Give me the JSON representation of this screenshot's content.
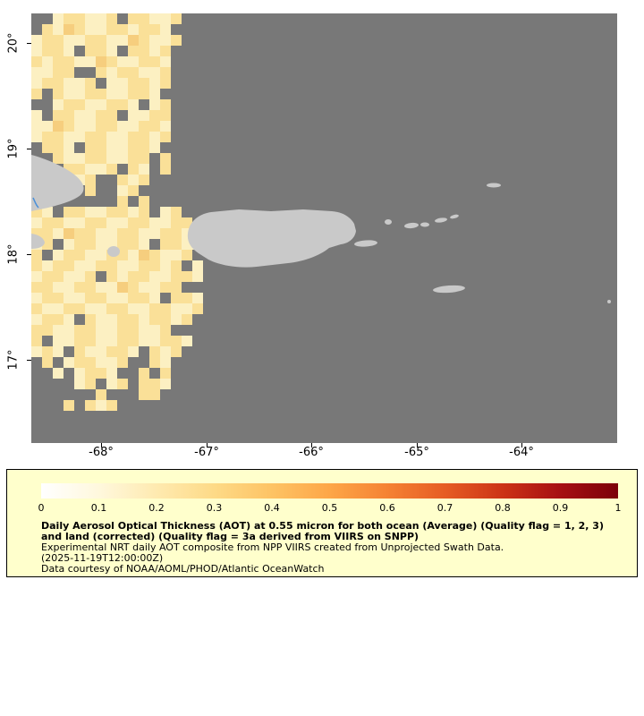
{
  "page": {
    "background": "#ffffff"
  },
  "map": {
    "background_color": "#787878",
    "land_color": "#c9c9c9",
    "river_color": "#4a90d9",
    "x_axis": {
      "labels": [
        "-68°",
        "-67°",
        "-66°",
        "-65°",
        "-64°"
      ],
      "positions": [
        113,
        231,
        348,
        466,
        583
      ]
    },
    "y_axis": {
      "labels": [
        "20°",
        "19°",
        "18°",
        "17°"
      ],
      "positions": [
        48,
        166,
        284,
        402
      ]
    },
    "aot_grid": {
      "cell_size": 12,
      "palette": {
        "a": "#fcf0c2",
        "b": "#fae098",
        "c": "#f6ce7e"
      },
      "rows": [
        "..abbaab.bbaab..",
        ".bacbaabbabba...",
        "abbaabbaacbaab..",
        "abba.bba.bbab...",
        "babbaacbaabba...",
        "aabb..babbaab...",
        "abbaab.aabbab...",
        "b.baabbaabba....",
        "..abbaabba.ab...",
        "a.bbaabb.aabb...",
        "aacbaabbaabba...",
        "abbaabbaabbab...",
        ".bba.bbaabba....",
        "..baabbaabb.b...",
        "...bbaab.ba.b...",
        "....ab..bab.....",
        ".....b..ab......",
        "........b.b.....",
        "ba.bbaabbab.ab..",
        "abbaabbaabbaabb.",
        "bbacbbaabbaabbab",
        "ab.abbaabba.bbaa",
        "b.abbaabbacbaab.",
        "babbaabbaabbab.a",
        "abbaab.babbaabba",
        "bbaabbaacbaabb..",
        "abbaabbaabba.bba",
        "baabbaabbaabbaab",
        "abba.baabbabbab.",
        "bbaabbaabbaab...",
        "b.aabbaabbaabba.",
        "aba.baabba.bab..",
        ".b.abbaab..ba...",
        "..a.abba..b.b...",
        "....ab.ab.bba...",
        "......b...bb....",
        "...b.bab........"
      ]
    }
  },
  "legend": {
    "background_color": "#ffffcc",
    "border_color": "#000000",
    "colorbar": {
      "stops": [
        "#ffffff",
        "#fff8dd",
        "#feeab0",
        "#fdda87",
        "#fdc364",
        "#fda648",
        "#f58233",
        "#e65c24",
        "#cc3317",
        "#a60f13",
        "#7c000a"
      ],
      "tick_labels": [
        "0",
        "0.1",
        "0.2",
        "0.3",
        "0.4",
        "0.5",
        "0.6",
        "0.7",
        "0.8",
        "0.9",
        "1"
      ]
    },
    "title_bold": "Daily Aerosol Optical Thickness (AOT) at 0.55 micron for both ocean (Average) (Quality flag = 1, 2, 3) and land (corrected) (Quality flag = 3a derived from VIIRS on SNPP)",
    "subtitle": "Experimental NRT daily AOT composite from NPP VIIRS created from Unprojected Swath Data.",
    "timestamp": "(2025-11-19T12:00:00Z)",
    "credit": "Data courtesy of NOAA/AOML/PHOD/Atlantic OceanWatch"
  }
}
